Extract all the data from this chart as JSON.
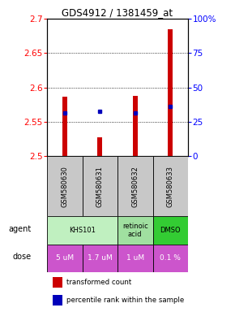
{
  "title": "GDS4912 / 1381459_at",
  "samples": [
    "GSM580630",
    "GSM580631",
    "GSM580632",
    "GSM580633"
  ],
  "red_values": [
    2.587,
    2.528,
    2.588,
    2.685
  ],
  "blue_values": [
    2.563,
    2.565,
    2.563,
    2.573
  ],
  "ymin": 2.5,
  "ymax": 2.7,
  "yticks_left": [
    2.5,
    2.55,
    2.6,
    2.65,
    2.7
  ],
  "yticks_right": [
    0,
    25,
    50,
    75,
    100
  ],
  "ytick_labels_right": [
    "0",
    "25",
    "50",
    "75",
    "100%"
  ],
  "dose_labels": [
    "5 uM",
    "1.7 uM",
    "1 uM",
    "0.1 %"
  ],
  "sample_bg": "#c8c8c8",
  "legend_red": "transformed count",
  "legend_blue": "percentile rank within the sample",
  "bar_width": 0.13,
  "agent_info": [
    {
      "c0": 0,
      "c1": 1,
      "text": "KHS101",
      "color": "#c0f0c0"
    },
    {
      "c0": 2,
      "c1": 2,
      "text": "retinoic\nacid",
      "color": "#a0e0a0"
    },
    {
      "c0": 3,
      "c1": 3,
      "text": "DMSO",
      "color": "#33cc33"
    }
  ],
  "dose_color": "#cc55cc"
}
